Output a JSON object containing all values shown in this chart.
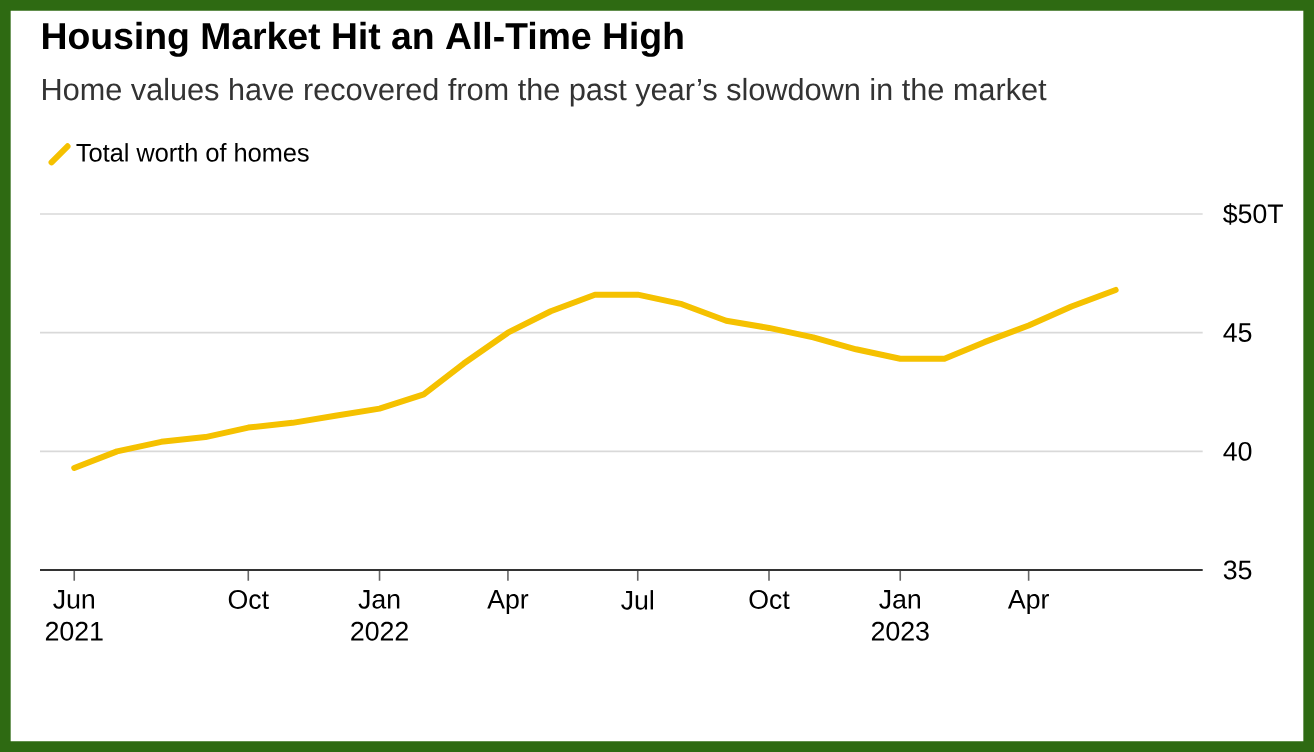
{
  "chart_data": {
    "type": "line",
    "title": "Housing Market Hit an All-Time High",
    "subtitle": "Home values have recovered from the past year’s slowdown in the market",
    "x": [
      "2021-06",
      "2021-07",
      "2021-08",
      "2021-09",
      "2021-10",
      "2021-11",
      "2021-12",
      "2022-01",
      "2022-02",
      "2022-03",
      "2022-04",
      "2022-05",
      "2022-06",
      "2022-07",
      "2022-08",
      "2022-09",
      "2022-10",
      "2022-11",
      "2022-12",
      "2023-01",
      "2023-02",
      "2023-03",
      "2023-04",
      "2023-05",
      "2023-06"
    ],
    "series": [
      {
        "name": "Total worth of homes",
        "color": "#f5c100",
        "values": [
          39.3,
          40.0,
          40.4,
          40.6,
          41.0,
          41.2,
          41.5,
          41.8,
          42.4,
          43.7,
          45.0,
          45.9,
          46.6,
          46.6,
          46.2,
          45.5,
          45.2,
          44.8,
          44.3,
          43.9,
          43.9,
          44.6,
          45.3,
          46.1,
          46.8
        ]
      }
    ],
    "xlim": [
      "2021-05-08",
      "2023-08-01"
    ],
    "xticks": [
      {
        "value": "2021-06",
        "label": "Jun 2021"
      },
      {
        "value": "2021-10",
        "label": "Oct"
      },
      {
        "value": "2022-01",
        "label": "Jan 2022"
      },
      {
        "value": "2022-04",
        "label": "Apr"
      },
      {
        "value": "2022-07",
        "label": "Jul"
      },
      {
        "value": "2022-10",
        "label": "Oct"
      },
      {
        "value": "2023-01",
        "label": "Jan 2023"
      },
      {
        "value": "2023-04",
        "label": "Apr"
      }
    ],
    "ylim": [
      35,
      50
    ],
    "yticks": [
      35,
      40,
      45,
      {
        "value": 50,
        "label": "$50T"
      }
    ],
    "grid": "y",
    "legend": "top left",
    "marker": "none",
    "line_style": "solid"
  }
}
